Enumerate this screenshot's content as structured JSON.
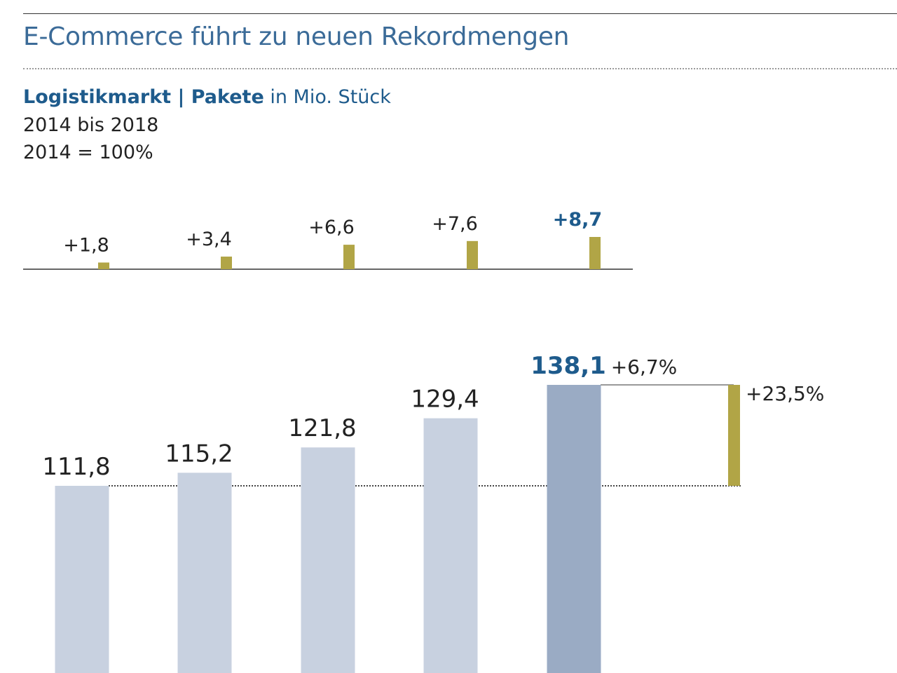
{
  "page": {
    "title": "E-Commerce führt zu neuen Rekordmengen",
    "subtitle_strong": "Logistikmarkt | Pakete",
    "subtitle_rest": " in Mio. Stück",
    "period": "2014 bis 2018",
    "base": "2014 = 100%"
  },
  "colors": {
    "title": "#3b6b98",
    "accent_text": "#1e5b8c",
    "bar": "#c8d1e0",
    "bar_highlight": "#9aabc4",
    "increment": "#b1a546",
    "text": "#222222"
  },
  "chart_data": [
    {
      "type": "bar",
      "title": "",
      "categories": [
        "",
        "",
        "",
        "",
        ""
      ],
      "values": [
        1.8,
        3.4,
        6.6,
        7.6,
        8.7
      ],
      "labels": [
        "+1,8",
        "+3,4",
        "+6,6",
        "+7,6",
        "+8,7"
      ],
      "highlight_index": 4,
      "ylim": [
        0,
        8.7
      ]
    },
    {
      "type": "bar",
      "title": "",
      "categories": [
        "",
        "",
        "",
        "",
        ""
      ],
      "values": [
        111.8,
        115.2,
        121.8,
        129.4,
        138.1
      ],
      "labels": [
        "111,8",
        "115,2",
        "121,8",
        "129,4",
        "138,1"
      ],
      "highlight_index": 4,
      "growth_label": "+6,7%",
      "total_growth_label": "+23,5%",
      "baseline_value": 111.8
    }
  ]
}
